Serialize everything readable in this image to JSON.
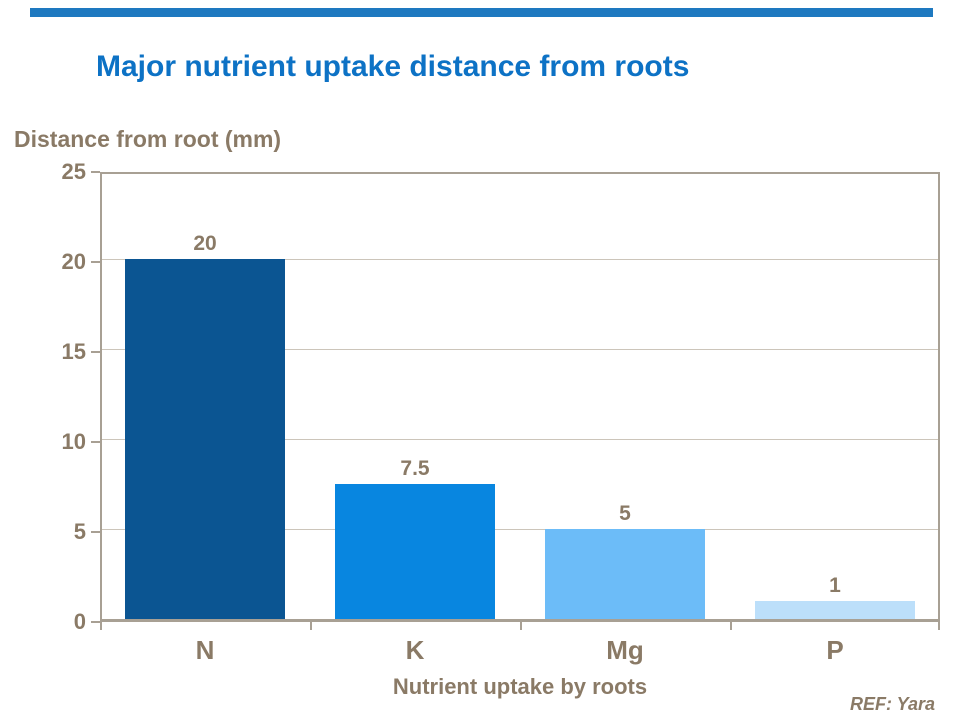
{
  "page": {
    "accent_bar_color": "#1E79C0",
    "background_color": "#FFFFFF"
  },
  "title": {
    "text": "Major nutrient uptake distance from roots",
    "color": "#0D72C5"
  },
  "footer": {
    "ref": "REF: Yara"
  },
  "chart_data": {
    "type": "bar",
    "title": "Major nutrient uptake distance from roots",
    "categories": [
      "N",
      "K",
      "Mg",
      "P"
    ],
    "values": [
      20,
      7.5,
      5,
      1
    ],
    "value_labels": [
      "20",
      "7.5",
      "5",
      "1"
    ],
    "bar_colors": [
      "#0B5592",
      "#0886E0",
      "#6CBCF8",
      "#BCDFFA"
    ],
    "xlabel": "Nutrient uptake by roots",
    "ylabel": "Distance from root (mm)",
    "ylim": [
      0,
      25
    ],
    "yticks": [
      0,
      5,
      10,
      15,
      20,
      25
    ],
    "ytick_labels": [
      "0",
      "5",
      "10",
      "15",
      "20",
      "25"
    ],
    "grid": true,
    "legend_position": "none",
    "text_color": "#8A7A66",
    "axis_color": "#A8A094",
    "gridline_color": "#CCC5BA"
  }
}
